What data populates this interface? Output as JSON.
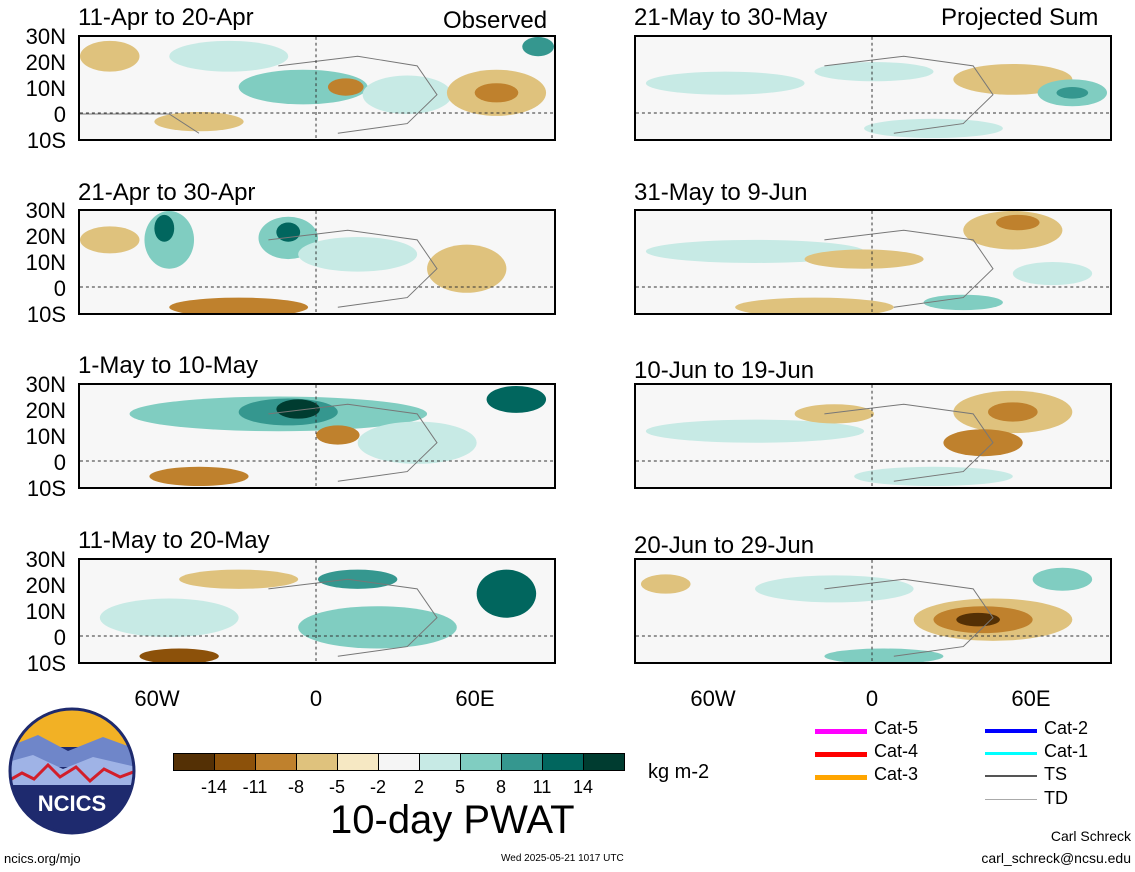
{
  "panels": [
    {
      "title": "11-Apr to 20-Apr",
      "tag": "Observed"
    },
    {
      "title": "21-May to 30-May",
      "tag": "Projected Sum"
    },
    {
      "title": "21-Apr to 30-Apr",
      "tag": ""
    },
    {
      "title": "31-May to 9-Jun",
      "tag": ""
    },
    {
      "title": "1-May to 10-May",
      "tag": ""
    },
    {
      "title": "10-Jun to 19-Jun",
      "tag": ""
    },
    {
      "title": "11-May to 20-May",
      "tag": ""
    },
    {
      "title": "20-Jun to 29-Jun",
      "tag": ""
    }
  ],
  "lat_labels": [
    "30N",
    "20N",
    "10N",
    "0",
    "10S"
  ],
  "lon_labels": [
    "60W",
    "0",
    "60E"
  ],
  "colorbar": {
    "ticks": [
      "-14",
      "-11",
      "-8",
      "-5",
      "-2",
      "2",
      "5",
      "8",
      "11",
      "14"
    ],
    "colors": [
      "#543005",
      "#8c510a",
      "#bf812d",
      "#dfc27d",
      "#f6e8c3",
      "#f5f5f5",
      "#c7eae5",
      "#80cdc1",
      "#35978f",
      "#01665e",
      "#003c30"
    ],
    "units": "kg m-2",
    "title": "10-day PWAT"
  },
  "storm_legend": [
    {
      "label": "Cat-5",
      "color": "#ff00ff"
    },
    {
      "label": "Cat-4",
      "color": "#ff0000"
    },
    {
      "label": "Cat-3",
      "color": "#ffa500"
    },
    {
      "label": "Cat-2",
      "color": "#0000ff"
    },
    {
      "label": "Cat-1",
      "color": "#00ffff"
    },
    {
      "label": "TS",
      "color": "#555555"
    },
    {
      "label": "TD",
      "color": "#aaaaaa"
    }
  ],
  "logo_text": "NCICS",
  "footer": {
    "url": "ncics.org/mjo",
    "timestamp": "Wed 2025-05-21 1017 UTC",
    "author": "Carl Schreck",
    "email": "carl_schreck@ncsu.edu"
  }
}
